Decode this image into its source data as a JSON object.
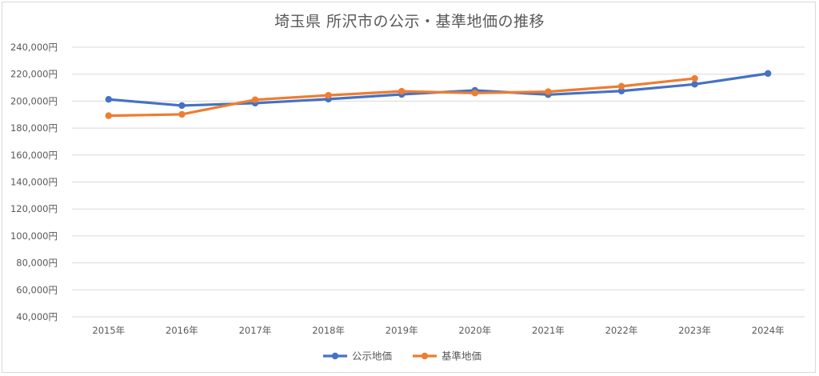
{
  "chart_data": {
    "type": "line",
    "title": "埼玉県 所沢市の公示・基準地価の推移",
    "xlabel": "",
    "ylabel": "",
    "categories": [
      "2015年",
      "2016年",
      "2017年",
      "2018年",
      "2019年",
      "2020年",
      "2021年",
      "2022年",
      "2023年",
      "2024年"
    ],
    "ylim": [
      40000,
      240000
    ],
    "yticks": [
      "40,000円",
      "60,000円",
      "80,000円",
      "100,000円",
      "120,000円",
      "140,000円",
      "160,000円",
      "180,000円",
      "200,000円",
      "220,000円",
      "240,000円"
    ],
    "grid": true,
    "legend_position": "bottom",
    "series": [
      {
        "name": "公示地価",
        "color": "#4472c4",
        "values": [
          201300,
          196700,
          198500,
          201500,
          205000,
          208000,
          204800,
          207500,
          212500,
          220500
        ]
      },
      {
        "name": "基準地価",
        "color": "#ed7d31",
        "values": [
          189200,
          190200,
          201000,
          204300,
          207300,
          206000,
          207000,
          211000,
          216800,
          null
        ]
      }
    ]
  }
}
